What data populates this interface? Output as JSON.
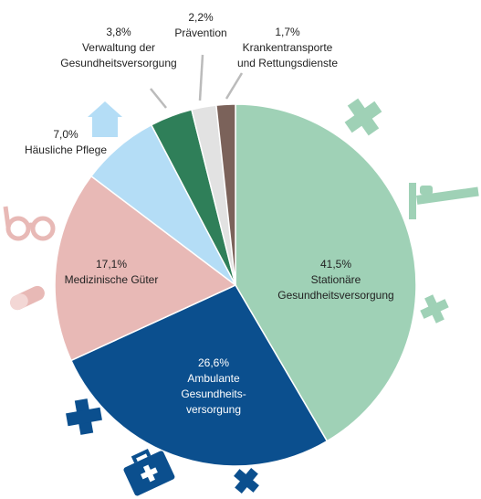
{
  "chart_data": {
    "type": "pie",
    "categories": [
      [
        "Stationäre",
        "Gesundheitsversorgung"
      ],
      [
        "Ambulante",
        "Gesundheits-",
        "versorgung"
      ],
      [
        "Medizinische Güter"
      ],
      [
        "Häusliche Pflege"
      ],
      [
        "Verwaltung der",
        "Gesundheitsversorgung"
      ],
      [
        "Prävention"
      ],
      [
        "Krankentransporte",
        "und Rettungsdienste"
      ]
    ],
    "values": [
      41.5,
      26.6,
      17.1,
      7.0,
      3.8,
      2.2,
      1.7
    ],
    "value_labels": [
      "41,5%",
      "26,6%",
      "17,1%",
      "7,0%",
      "3,8%",
      "2,2%",
      "1,7%"
    ],
    "colors": [
      "#9fd1b6",
      "#0b4f8e",
      "#e8b9b6",
      "#b4ddf6",
      "#2f7f59",
      "#e2e2e2",
      "#7b625a"
    ]
  }
}
